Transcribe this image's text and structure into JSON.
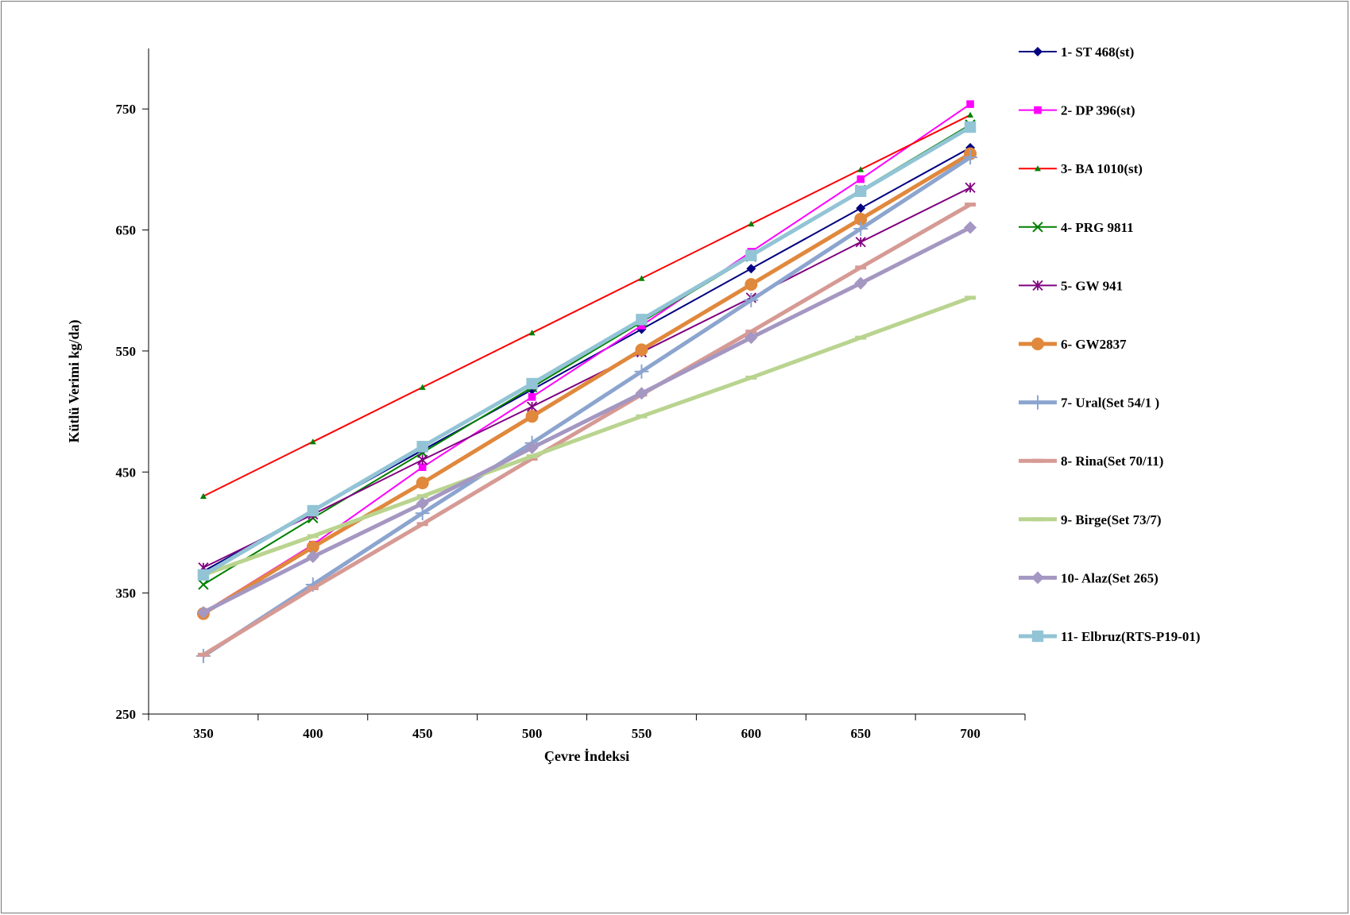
{
  "chart_data": {
    "type": "line",
    "title": "",
    "xlabel": "Çevre İndeksi",
    "ylabel": "Kütlü Verimi kg/da)",
    "x": [
      350,
      400,
      450,
      500,
      550,
      600,
      650,
      700
    ],
    "x_tick_labels": [
      "350",
      "400",
      "450",
      "500",
      "550",
      "600",
      "650",
      "700"
    ],
    "y_tick_labels": [
      "250",
      "350",
      "450",
      "550",
      "650",
      "750"
    ],
    "y_ticks": [
      250,
      350,
      450,
      550,
      650,
      750
    ],
    "ylim": [
      250,
      800
    ],
    "grid": false,
    "legend_position": "right",
    "series": [
      {
        "name": "1- ST 468(st)",
        "color": "#000080",
        "marker": "diamond",
        "thick": false,
        "values": [
          368,
          418,
          468,
          518,
          568,
          618,
          668,
          718
        ]
      },
      {
        "name": "2- DP 396(st)",
        "color": "#ff00ff",
        "marker": "square",
        "thick": false,
        "values": [
          334,
          390,
          454,
          512,
          571,
          632,
          692,
          754
        ]
      },
      {
        "name": "3- BA 1010(st)",
        "color": "#ff0000",
        "marker": "triangle",
        "marker_color": "#008000",
        "thick": false,
        "values": [
          430,
          475,
          520,
          565,
          610,
          655,
          700,
          745
        ]
      },
      {
        "name": "4- PRG 9811",
        "color": "#008000",
        "marker": "x",
        "thick": false,
        "values": [
          357,
          412,
          466,
          520,
          574,
          628,
          683,
          737
        ]
      },
      {
        "name": "5- GW 941",
        "color": "#800080",
        "marker": "star",
        "thick": false,
        "values": [
          371,
          415,
          460,
          504,
          549,
          594,
          640,
          685
        ]
      },
      {
        "name": "6- GW2837",
        "color": "#e0883c",
        "marker": "circle",
        "thick": true,
        "values": [
          333,
          388,
          441,
          496,
          551,
          605,
          659,
          713
        ]
      },
      {
        "name": "7- Ural(Set 54/1 )",
        "color": "#8ca5cf",
        "marker": "plus",
        "thick": true,
        "values": [
          298,
          357,
          416,
          474,
          533,
          592,
          651,
          710
        ]
      },
      {
        "name": "8- Rina(Set 70/11)",
        "color": "#d69a94",
        "marker": "dash",
        "thick": true,
        "values": [
          299,
          354,
          407,
          461,
          514,
          566,
          619,
          671
        ]
      },
      {
        "name": "9- Birge(Set 73/7)",
        "color": "#b9d48f",
        "marker": "dash",
        "thick": true,
        "values": [
          365,
          397,
          430,
          463,
          496,
          528,
          561,
          594
        ]
      },
      {
        "name": "10- Alaz(Set 265)",
        "color": "#a497c2",
        "marker": "diamond",
        "thick": true,
        "values": [
          334,
          380,
          424,
          470,
          515,
          561,
          606,
          652
        ]
      },
      {
        "name": "11- Elbruz(RTS-P19-01)",
        "color": "#92c4d6",
        "marker": "square",
        "thick": true,
        "values": [
          365,
          418,
          471,
          523,
          576,
          629,
          682,
          735
        ]
      }
    ]
  }
}
